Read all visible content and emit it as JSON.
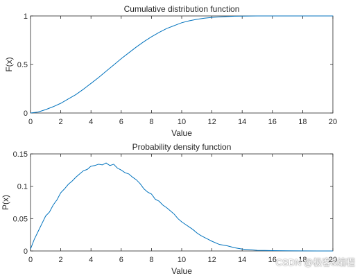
{
  "figure": {
    "background": "#ffffff",
    "line_color": "#0072bd",
    "axis_color": "#262626"
  },
  "watermark": "CSDN @极客&编程",
  "chart_data": [
    {
      "type": "line",
      "title": "Cumulative distribution function",
      "xlabel": "Value",
      "ylabel": "F(x)",
      "xlim": [
        0,
        20
      ],
      "ylim": [
        0,
        1
      ],
      "xticks": [
        0,
        2,
        4,
        6,
        8,
        10,
        12,
        14,
        16,
        18,
        20
      ],
      "xtick_labels": [
        "0",
        "2",
        "4",
        "6",
        "8",
        "10",
        "12",
        "14",
        "16",
        "18",
        "20"
      ],
      "yticks": [
        0,
        0.5,
        1
      ],
      "ytick_labels": [
        "0",
        "0.5",
        "1"
      ],
      "grid": false,
      "series": [
        {
          "x": [
            0,
            0.5,
            1,
            1.5,
            2,
            2.5,
            3,
            3.5,
            4,
            4.5,
            5,
            5.5,
            6,
            6.5,
            7,
            7.5,
            8,
            8.5,
            9,
            9.5,
            10,
            10.5,
            11,
            11.5,
            12,
            12.5,
            13,
            13.5,
            14,
            14.5,
            15,
            16,
            17,
            18,
            19,
            20
          ],
          "y": [
            0,
            0.01,
            0.035,
            0.065,
            0.1,
            0.145,
            0.19,
            0.245,
            0.305,
            0.365,
            0.43,
            0.495,
            0.56,
            0.62,
            0.68,
            0.735,
            0.785,
            0.83,
            0.87,
            0.9,
            0.93,
            0.95,
            0.965,
            0.977,
            0.985,
            0.99,
            0.994,
            0.997,
            0.998,
            0.999,
            1,
            1,
            1,
            1,
            1,
            1
          ]
        }
      ]
    },
    {
      "type": "line",
      "title": "Probability density function",
      "xlabel": "Value",
      "ylabel": "P(x)",
      "xlim": [
        0,
        20
      ],
      "ylim": [
        0,
        0.15
      ],
      "xticks": [
        0,
        2,
        4,
        6,
        8,
        10,
        12,
        14,
        16,
        18,
        20
      ],
      "xtick_labels": [
        "0",
        "2",
        "4",
        "6",
        "8",
        "10",
        "12",
        "14",
        "16",
        "18",
        "20"
      ],
      "yticks": [
        0,
        0.05,
        0.1,
        0.15
      ],
      "ytick_labels": [
        "0",
        "0.05",
        "0.1",
        "0.15"
      ],
      "grid": false,
      "series": [
        {
          "x": [
            0,
            0.25,
            0.5,
            0.75,
            1,
            1.25,
            1.5,
            1.75,
            2,
            2.25,
            2.5,
            2.75,
            3,
            3.25,
            3.5,
            3.75,
            4,
            4.25,
            4.5,
            4.75,
            5,
            5.25,
            5.5,
            5.75,
            6,
            6.25,
            6.5,
            6.75,
            7,
            7.25,
            7.5,
            7.75,
            8,
            8.25,
            8.5,
            8.75,
            9,
            9.25,
            9.5,
            9.75,
            10,
            10.25,
            10.5,
            10.75,
            11,
            11.25,
            11.5,
            11.75,
            12,
            12.5,
            13,
            13.5,
            14,
            14.5,
            15,
            15.5,
            16,
            17,
            18,
            19,
            20
          ],
          "y": [
            0.003,
            0.018,
            0.03,
            0.042,
            0.054,
            0.06,
            0.071,
            0.079,
            0.09,
            0.096,
            0.103,
            0.108,
            0.114,
            0.119,
            0.124,
            0.126,
            0.131,
            0.132,
            0.134,
            0.133,
            0.136,
            0.132,
            0.134,
            0.128,
            0.125,
            0.121,
            0.119,
            0.114,
            0.11,
            0.104,
            0.096,
            0.091,
            0.088,
            0.08,
            0.077,
            0.071,
            0.067,
            0.062,
            0.057,
            0.05,
            0.045,
            0.041,
            0.037,
            0.033,
            0.028,
            0.024,
            0.021,
            0.018,
            0.015,
            0.01,
            0.008,
            0.005,
            0.003,
            0.002,
            0.001,
            0.0008,
            0.0005,
            0.0002,
            0.0001,
            0,
            0
          ]
        }
      ]
    }
  ]
}
